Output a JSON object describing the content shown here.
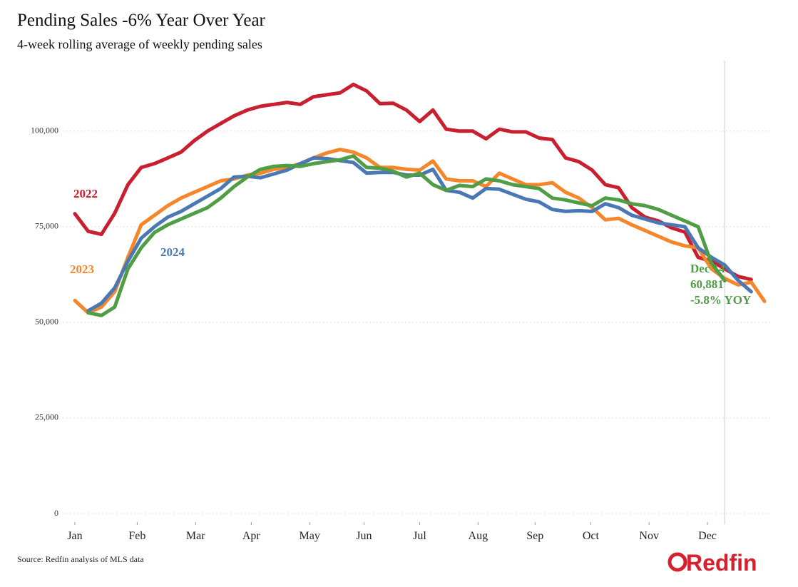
{
  "chart_data": {
    "type": "line",
    "title": "Pending Sales -6% Year Over Year",
    "subtitle": "4-week rolling average of weekly pending sales",
    "source": "Source: Redfin analysis of MLS data",
    "brand": "Redfin",
    "xlim": [
      0,
      52
    ],
    "ylim": [
      0,
      117500
    ],
    "xticks": [
      {
        "value": 0,
        "label": "Jan"
      },
      {
        "value": 4.7,
        "label": "Feb"
      },
      {
        "value": 9.1,
        "label": "Mar"
      },
      {
        "value": 13.3,
        "label": "Apr"
      },
      {
        "value": 17.7,
        "label": "May"
      },
      {
        "value": 21.8,
        "label": "Jun"
      },
      {
        "value": 26,
        "label": "Jul"
      },
      {
        "value": 30.4,
        "label": "Aug"
      },
      {
        "value": 34.7,
        "label": "Sep"
      },
      {
        "value": 38.9,
        "label": "Oct"
      },
      {
        "value": 43.3,
        "label": "Nov"
      },
      {
        "value": 47.7,
        "label": "Dec"
      }
    ],
    "yticks": [
      0,
      {
        "value": 25000,
        "label": "25,000"
      },
      {
        "value": 50000,
        "label": "50,000"
      },
      {
        "value": 75000,
        "label": "75,000"
      },
      {
        "value": 100000,
        "label": "100,000"
      }
    ],
    "grid": true,
    "vline": 49,
    "x": [
      0,
      1,
      2,
      3,
      4,
      5,
      6,
      7,
      8,
      9,
      10,
      11,
      12,
      13,
      14,
      15,
      16,
      17,
      18,
      19,
      20,
      21,
      22,
      23,
      24,
      25,
      26,
      27,
      28,
      29,
      30,
      31,
      32,
      33,
      34,
      35,
      36,
      37,
      38,
      39,
      40,
      41,
      42,
      43,
      44,
      45,
      46,
      47,
      48,
      49,
      50,
      51,
      52
    ],
    "series": [
      {
        "name": "2022",
        "color": "#c8202f",
        "values": [
          78400,
          73800,
          73000,
          78500,
          86000,
          90500,
          91500,
          93000,
          94500,
          97500,
          100000,
          102000,
          104000,
          105500,
          106500,
          107000,
          107500,
          107000,
          109000,
          109500,
          110000,
          112200,
          110500,
          107200,
          107300,
          105500,
          102500,
          105500,
          100500,
          100000,
          100000,
          98000,
          100500,
          99800,
          99800,
          98200,
          97800,
          93000,
          92000,
          89800,
          86000,
          85200,
          80000,
          77500,
          76500,
          74700,
          73600,
          67000,
          66000,
          64000,
          62000,
          61200,
          null
        ]
      },
      {
        "name": "2023",
        "color": "#f5862a",
        "values": [
          55700,
          52500,
          54000,
          58000,
          67000,
          75500,
          78000,
          80500,
          82500,
          84000,
          85500,
          87000,
          87500,
          88500,
          89000,
          90000,
          90500,
          91500,
          93000,
          94300,
          95200,
          94500,
          93000,
          90500,
          90500,
          90000,
          89800,
          92200,
          87500,
          87000,
          87000,
          85500,
          89000,
          87500,
          86000,
          86000,
          86500,
          84000,
          82500,
          80000,
          76800,
          77200,
          75500,
          74000,
          72500,
          71000,
          70000,
          69500,
          64000,
          61500,
          59800,
          60500,
          55500
        ]
      },
      {
        "name": "2024",
        "color": "#4a78b5",
        "values": [
          null,
          53000,
          55000,
          59000,
          66000,
          72000,
          75000,
          77500,
          79000,
          81000,
          83000,
          85000,
          88000,
          88200,
          87800,
          88800,
          89800,
          91500,
          93000,
          92800,
          92300,
          91800,
          89000,
          89200,
          89200,
          88500,
          88500,
          90000,
          84500,
          84000,
          82500,
          85000,
          84800,
          83500,
          82200,
          81500,
          79500,
          79000,
          79200,
          79000,
          81000,
          80000,
          78000,
          77000,
          76000,
          75500,
          75000,
          69500,
          67000,
          65000,
          61000,
          58000,
          null
        ]
      },
      {
        "color": "#4f9e46",
        "values": [
          null,
          52500,
          51800,
          54000,
          64000,
          69500,
          73500,
          75500,
          77000,
          78500,
          80000,
          82500,
          85500,
          88000,
          90000,
          90800,
          91000,
          90800,
          91500,
          92000,
          92500,
          93500,
          90500,
          90300,
          89500,
          88000,
          89000,
          86000,
          84500,
          85800,
          85500,
          87500,
          87000,
          86000,
          85500,
          85000,
          82500,
          82000,
          81200,
          80500,
          82500,
          82000,
          81000,
          80500,
          79500,
          78000,
          76500,
          75000,
          65500,
          60881,
          null,
          null,
          null
        ]
      }
    ],
    "annotation": [
      "Dec 14",
      "60,881",
      "-5.8% YOY"
    ]
  }
}
